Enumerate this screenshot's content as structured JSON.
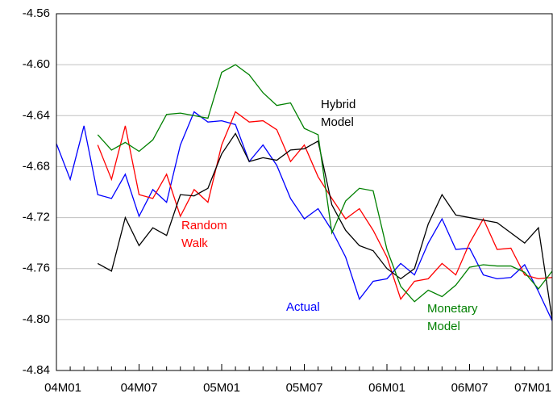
{
  "chart_data": {
    "type": "line",
    "categories": [
      "04M01",
      null,
      null,
      null,
      null,
      null,
      "04M07",
      null,
      null,
      null,
      null,
      null,
      "05M01",
      null,
      null,
      null,
      null,
      null,
      "05M07",
      null,
      null,
      null,
      null,
      null,
      "06M01",
      null,
      null,
      null,
      null,
      null,
      "06M07",
      null,
      null,
      null,
      null,
      null,
      "07M01"
    ],
    "ylim": [
      -4.84,
      -4.56
    ],
    "yticks": [
      -4.84,
      {
        "value": -4.8,
        "label": "-4.80"
      },
      -4.76,
      -4.72,
      -4.68,
      -4.64,
      {
        "value": -4.6,
        "label": "-4.60"
      },
      -4.56
    ],
    "grid": true,
    "series": [
      {
        "label_lines": [
          "Actual"
        ],
        "color": "#0000ff",
        "values": [
          -4.662,
          -4.69,
          -4.648,
          -4.702,
          -4.705,
          -4.686,
          -4.719,
          -4.698,
          -4.708,
          -4.663,
          -4.637,
          -4.645,
          -4.644,
          -4.647,
          -4.676,
          -4.663,
          -4.679,
          -4.705,
          -4.721,
          -4.713,
          -4.73,
          -4.751,
          -4.784,
          -4.77,
          -4.768,
          -4.756,
          -4.765,
          -4.74,
          -4.721,
          -4.745,
          -4.744,
          -4.765,
          -4.768,
          -4.767,
          -4.757,
          -4.778,
          -4.801
        ]
      },
      {
        "label_lines": [
          "Random",
          "Walk"
        ],
        "color": "#ff0000",
        "values": [
          null,
          null,
          null,
          -4.663,
          -4.69,
          -4.648,
          -4.702,
          -4.705,
          -4.686,
          -4.719,
          -4.698,
          -4.708,
          -4.663,
          -4.637,
          -4.645,
          -4.644,
          -4.651,
          -4.676,
          -4.663,
          -4.688,
          -4.705,
          -4.721,
          -4.713,
          -4.73,
          -4.751,
          -4.784,
          -4.77,
          -4.768,
          -4.756,
          -4.765,
          -4.74,
          -4.721,
          -4.745,
          -4.744,
          -4.765,
          -4.768,
          -4.767
        ]
      },
      {
        "label_lines": [
          "Hybrid",
          "Model"
        ],
        "color": "#000000",
        "values": [
          null,
          null,
          null,
          -4.756,
          -4.762,
          -4.72,
          -4.742,
          -4.728,
          -4.734,
          -4.702,
          -4.703,
          -4.697,
          -4.67,
          -4.654,
          -4.676,
          -4.673,
          -4.675,
          -4.667,
          -4.666,
          -4.66,
          -4.71,
          -4.73,
          -4.742,
          -4.746,
          -4.76,
          -4.768,
          -4.76,
          -4.725,
          -4.702,
          -4.718,
          -4.72,
          -4.722,
          -4.724,
          -4.732,
          -4.74,
          -4.728,
          -4.8
        ]
      },
      {
        "label_lines": [
          "Monetary",
          "Model"
        ],
        "color": "#008000",
        "values": [
          null,
          null,
          null,
          -4.655,
          -4.667,
          -4.661,
          -4.668,
          -4.659,
          -4.639,
          -4.638,
          -4.64,
          -4.642,
          -4.606,
          -4.6,
          -4.608,
          -4.622,
          -4.632,
          -4.63,
          -4.65,
          -4.655,
          -4.732,
          -4.707,
          -4.697,
          -4.699,
          -4.745,
          -4.774,
          -4.786,
          -4.777,
          -4.782,
          -4.773,
          -4.759,
          -4.757,
          -4.758,
          -4.758,
          -4.763,
          -4.776,
          -4.762
        ]
      }
    ]
  }
}
